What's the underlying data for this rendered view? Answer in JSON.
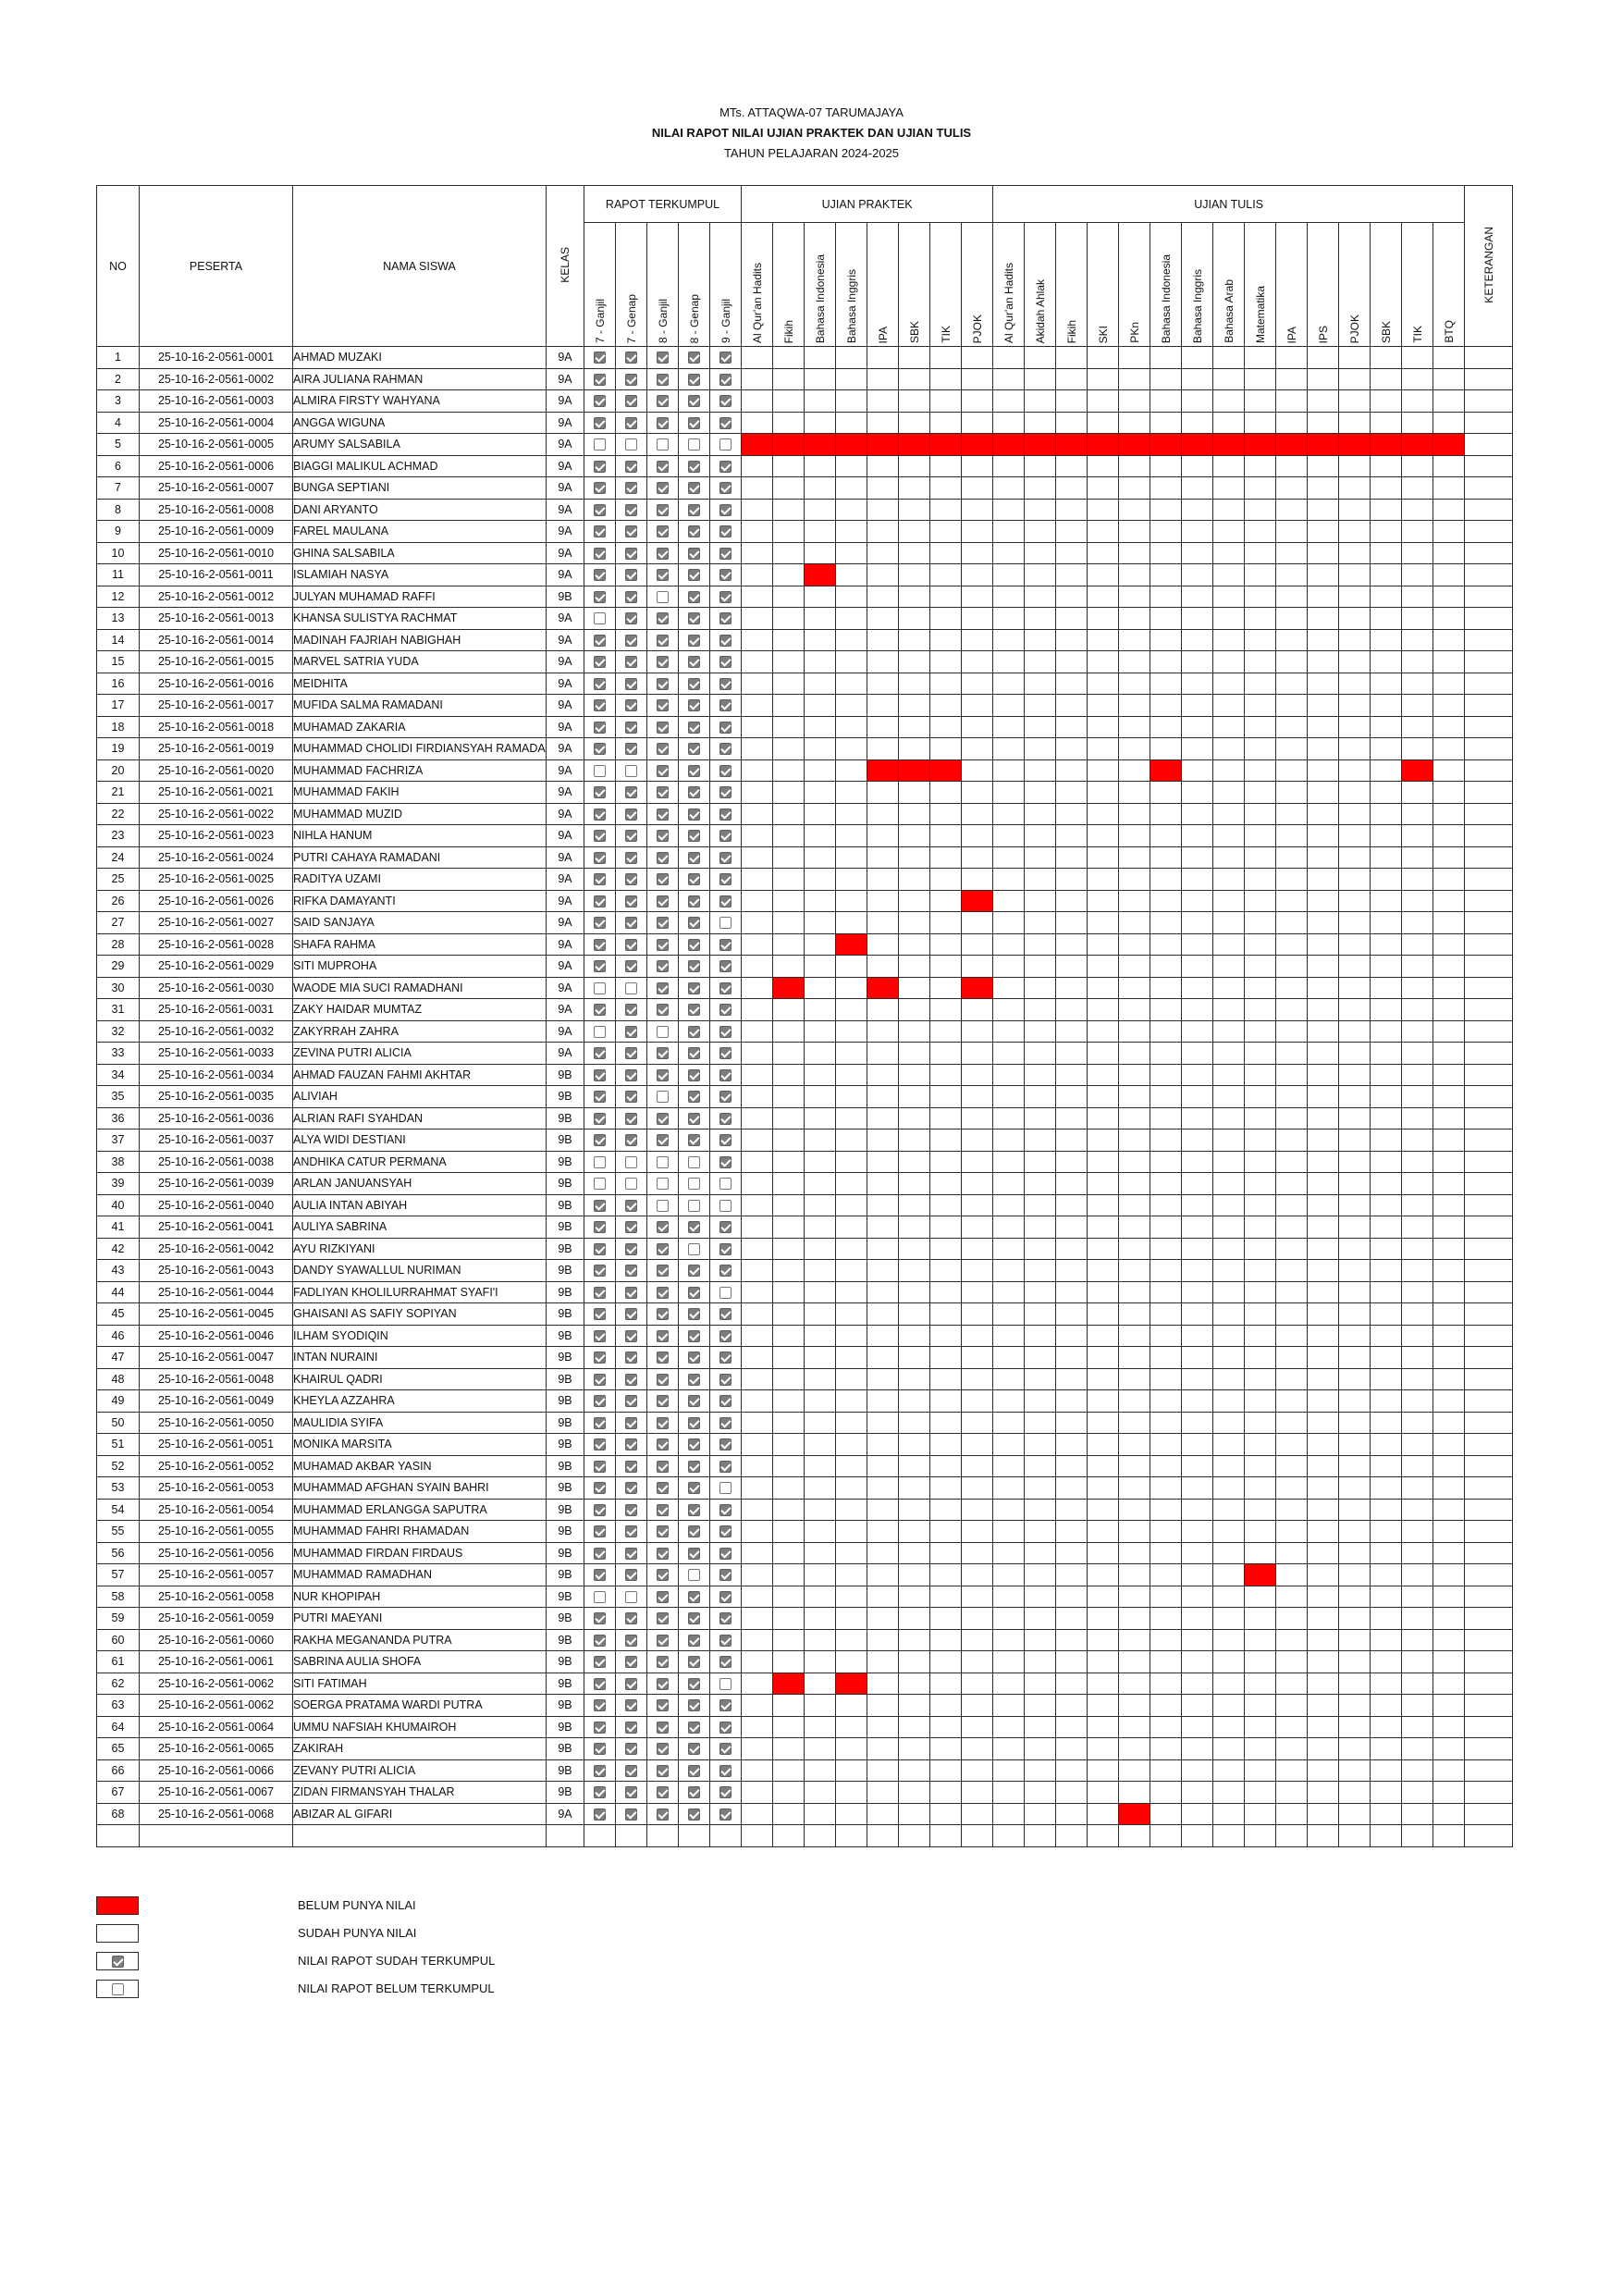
{
  "header": {
    "school": "MTs. ATTAQWA-07 TARUMAJAYA",
    "title": "NILAI RAPOT NILAI UJIAN PRAKTEK DAN UJIAN TULIS",
    "year": "TAHUN PELAJARAN 2024-2025"
  },
  "columns": {
    "no": "NO",
    "peserta": "PESERTA",
    "nama": "NAMA SISWA",
    "kelas": "KELAS",
    "keterangan": "KETERANGAN",
    "groups": {
      "rapot": "RAPOT TERKUMPUL",
      "praktek": "UJIAN PRAKTEK",
      "tulis": "UJIAN TULIS"
    },
    "rapot": [
      "7 - Ganjil",
      "7 - Genap",
      "8 - Ganjil",
      "8 - Genap",
      "9 - Ganjil"
    ],
    "praktek": [
      "Al Qur'an Hadits",
      "Fikih",
      "Bahasa Indonesia",
      "Bahasa Inggris",
      "IPA",
      "SBK",
      "TIK",
      "PJOK"
    ],
    "tulis": [
      "Al Qur'an Hadits",
      "Akidah Ahlak",
      "Fikih",
      "SKI",
      "PKn",
      "Bahasa Indonesia",
      "Bahasa Inggris",
      "Bahasa Arab",
      "Matematika",
      "IPA",
      "IPS",
      "PJOK",
      "SBK",
      "TIK",
      "BTQ"
    ]
  },
  "colors": {
    "missing": "#ff0000",
    "checked": "#7c7c7c"
  },
  "students": [
    {
      "no": "1",
      "id": "25-10-16-2-0561-0001",
      "name": "AHMAD MUZAKI",
      "kelas": "9A",
      "rapot": "11111",
      "red": []
    },
    {
      "no": "2",
      "id": "25-10-16-2-0561-0002",
      "name": "AIRA JULIANA RAHMAN",
      "kelas": "9A",
      "rapot": "11111",
      "red": []
    },
    {
      "no": "3",
      "id": "25-10-16-2-0561-0003",
      "name": "ALMIRA FIRSTY WAHYANA",
      "kelas": "9A",
      "rapot": "11111",
      "red": []
    },
    {
      "no": "4",
      "id": "25-10-16-2-0561-0004",
      "name": "ANGGA WIGUNA",
      "kelas": "9A",
      "rapot": "11111",
      "red": []
    },
    {
      "no": "5",
      "id": "25-10-16-2-0561-0005",
      "name": "ARUMY SALSABILA",
      "kelas": "9A",
      "rapot": "00000",
      "red": [
        0,
        1,
        2,
        3,
        4,
        5,
        6,
        7,
        8,
        9,
        10,
        11,
        12,
        13,
        14,
        15,
        16,
        17,
        18,
        19,
        20,
        21,
        22
      ]
    },
    {
      "no": "6",
      "id": "25-10-16-2-0561-0006",
      "name": "BIAGGI MALIKUL ACHMAD",
      "kelas": "9A",
      "rapot": "11111",
      "red": []
    },
    {
      "no": "7",
      "id": "25-10-16-2-0561-0007",
      "name": "BUNGA SEPTIANI",
      "kelas": "9A",
      "rapot": "11111",
      "red": []
    },
    {
      "no": "8",
      "id": "25-10-16-2-0561-0008",
      "name": "DANI ARYANTO",
      "kelas": "9A",
      "rapot": "11111",
      "red": []
    },
    {
      "no": "9",
      "id": "25-10-16-2-0561-0009",
      "name": "FAREL MAULANA",
      "kelas": "9A",
      "rapot": "11111",
      "red": []
    },
    {
      "no": "10",
      "id": "25-10-16-2-0561-0010",
      "name": "GHINA SALSABILA",
      "kelas": "9A",
      "rapot": "11111",
      "red": []
    },
    {
      "no": "11",
      "id": "25-10-16-2-0561-0011",
      "name": "ISLAMIAH NASYA",
      "kelas": "9A",
      "rapot": "11111",
      "red": [
        2
      ]
    },
    {
      "no": "12",
      "id": "25-10-16-2-0561-0012",
      "name": "JULYAN MUHAMAD RAFFI",
      "kelas": "9B",
      "rapot": "11011",
      "red": []
    },
    {
      "no": "13",
      "id": "25-10-16-2-0561-0013",
      "name": "KHANSA SULISTYA RACHMAT",
      "kelas": "9A",
      "rapot": "01111",
      "red": []
    },
    {
      "no": "14",
      "id": "25-10-16-2-0561-0014",
      "name": "MADINAH FAJRIAH NABIGHAH",
      "kelas": "9A",
      "rapot": "11111",
      "red": []
    },
    {
      "no": "15",
      "id": "25-10-16-2-0561-0015",
      "name": "MARVEL SATRIA YUDA",
      "kelas": "9A",
      "rapot": "11111",
      "red": []
    },
    {
      "no": "16",
      "id": "25-10-16-2-0561-0016",
      "name": "MEIDHITA",
      "kelas": "9A",
      "rapot": "11111",
      "red": []
    },
    {
      "no": "17",
      "id": "25-10-16-2-0561-0017",
      "name": "MUFIDA SALMA RAMADANI",
      "kelas": "9A",
      "rapot": "11111",
      "red": []
    },
    {
      "no": "18",
      "id": "25-10-16-2-0561-0018",
      "name": "MUHAMAD ZAKARIA",
      "kelas": "9A",
      "rapot": "11111",
      "red": []
    },
    {
      "no": "19",
      "id": "25-10-16-2-0561-0019",
      "name": "MUHAMMAD CHOLIDI FIRDIANSYAH RAMADAN",
      "kelas": "9A",
      "rapot": "11111",
      "red": []
    },
    {
      "no": "20",
      "id": "25-10-16-2-0561-0020",
      "name": "MUHAMMAD FACHRIZA",
      "kelas": "9A",
      "rapot": "00111",
      "red": [
        4,
        5,
        6,
        13,
        21
      ]
    },
    {
      "no": "21",
      "id": "25-10-16-2-0561-0021",
      "name": "MUHAMMAD FAKIH",
      "kelas": "9A",
      "rapot": "11111",
      "red": []
    },
    {
      "no": "22",
      "id": "25-10-16-2-0561-0022",
      "name": "MUHAMMAD MUZID",
      "kelas": "9A",
      "rapot": "11111",
      "red": []
    },
    {
      "no": "23",
      "id": "25-10-16-2-0561-0023",
      "name": "NIHLA HANUM",
      "kelas": "9A",
      "rapot": "11111",
      "red": []
    },
    {
      "no": "24",
      "id": "25-10-16-2-0561-0024",
      "name": "PUTRI CAHAYA RAMADANI",
      "kelas": "9A",
      "rapot": "11111",
      "red": []
    },
    {
      "no": "25",
      "id": "25-10-16-2-0561-0025",
      "name": "RADITYA UZAMI",
      "kelas": "9A",
      "rapot": "11111",
      "red": []
    },
    {
      "no": "26",
      "id": "25-10-16-2-0561-0026",
      "name": "RIFKA DAMAYANTI",
      "kelas": "9A",
      "rapot": "11111",
      "red": [
        7
      ]
    },
    {
      "no": "27",
      "id": "25-10-16-2-0561-0027",
      "name": "SAID SANJAYA",
      "kelas": "9A",
      "rapot": "11110",
      "red": []
    },
    {
      "no": "28",
      "id": "25-10-16-2-0561-0028",
      "name": "SHAFA RAHMA",
      "kelas": "9A",
      "rapot": "11111",
      "red": [
        3
      ]
    },
    {
      "no": "29",
      "id": "25-10-16-2-0561-0029",
      "name": "SITI MUPROHA",
      "kelas": "9A",
      "rapot": "11111",
      "red": []
    },
    {
      "no": "30",
      "id": "25-10-16-2-0561-0030",
      "name": "WAODE MIA SUCI RAMADHANI",
      "kelas": "9A",
      "rapot": "00111",
      "red": [
        1,
        4,
        7
      ]
    },
    {
      "no": "31",
      "id": "25-10-16-2-0561-0031",
      "name": "ZAKY HAIDAR MUMTAZ",
      "kelas": "9A",
      "rapot": "11111",
      "red": []
    },
    {
      "no": "32",
      "id": "25-10-16-2-0561-0032",
      "name": "ZAKYRRAH ZAHRA",
      "kelas": "9A",
      "rapot": "01011",
      "red": []
    },
    {
      "no": "33",
      "id": "25-10-16-2-0561-0033",
      "name": "ZEVINA PUTRI ALICIA",
      "kelas": "9A",
      "rapot": "11111",
      "red": []
    },
    {
      "no": "34",
      "id": "25-10-16-2-0561-0034",
      "name": "AHMAD FAUZAN FAHMI AKHTAR",
      "kelas": "9B",
      "rapot": "11111",
      "red": []
    },
    {
      "no": "35",
      "id": "25-10-16-2-0561-0035",
      "name": "ALIVIAH",
      "kelas": "9B",
      "rapot": "11011",
      "red": []
    },
    {
      "no": "36",
      "id": "25-10-16-2-0561-0036",
      "name": "ALRIAN RAFI SYAHDAN",
      "kelas": "9B",
      "rapot": "11111",
      "red": []
    },
    {
      "no": "37",
      "id": "25-10-16-2-0561-0037",
      "name": "ALYA WIDI DESTIANI",
      "kelas": "9B",
      "rapot": "11111",
      "red": []
    },
    {
      "no": "38",
      "id": "25-10-16-2-0561-0038",
      "name": "ANDHIKA CATUR PERMANA",
      "kelas": "9B",
      "rapot": "00001",
      "red": []
    },
    {
      "no": "39",
      "id": "25-10-16-2-0561-0039",
      "name": "ARLAN JANUANSYAH",
      "kelas": "9B",
      "rapot": "00000",
      "red": []
    },
    {
      "no": "40",
      "id": "25-10-16-2-0561-0040",
      "name": "AULIA INTAN ABIYAH",
      "kelas": "9B",
      "rapot": "11000",
      "red": []
    },
    {
      "no": "41",
      "id": "25-10-16-2-0561-0041",
      "name": "AULIYA SABRINA",
      "kelas": "9B",
      "rapot": "11111",
      "red": []
    },
    {
      "no": "42",
      "id": "25-10-16-2-0561-0042",
      "name": "AYU RIZKIYANI",
      "kelas": "9B",
      "rapot": "11101",
      "red": []
    },
    {
      "no": "43",
      "id": "25-10-16-2-0561-0043",
      "name": "DANDY SYAWALLUL NURIMAN",
      "kelas": "9B",
      "rapot": "11111",
      "red": []
    },
    {
      "no": "44",
      "id": "25-10-16-2-0561-0044",
      "name": "FADLIYAN KHOLILURRAHMAT SYAFI'I",
      "kelas": "9B",
      "rapot": "11110",
      "red": []
    },
    {
      "no": "45",
      "id": "25-10-16-2-0561-0045",
      "name": "GHAISANI AS SAFIY SOPIYAN",
      "kelas": "9B",
      "rapot": "11111",
      "red": []
    },
    {
      "no": "46",
      "id": "25-10-16-2-0561-0046",
      "name": "ILHAM SYODIQIN",
      "kelas": "9B",
      "rapot": "11111",
      "red": []
    },
    {
      "no": "47",
      "id": "25-10-16-2-0561-0047",
      "name": "INTAN NURAINI",
      "kelas": "9B",
      "rapot": "11111",
      "red": []
    },
    {
      "no": "48",
      "id": "25-10-16-2-0561-0048",
      "name": "KHAIRUL QADRI",
      "kelas": "9B",
      "rapot": "11111",
      "red": []
    },
    {
      "no": "49",
      "id": "25-10-16-2-0561-0049",
      "name": "KHEYLA AZZAHRA",
      "kelas": "9B",
      "rapot": "11111",
      "red": []
    },
    {
      "no": "50",
      "id": "25-10-16-2-0561-0050",
      "name": "MAULIDIA SYIFA",
      "kelas": "9B",
      "rapot": "11111",
      "red": []
    },
    {
      "no": "51",
      "id": "25-10-16-2-0561-0051",
      "name": "MONIKA MARSITA",
      "kelas": "9B",
      "rapot": "11111",
      "red": []
    },
    {
      "no": "52",
      "id": "25-10-16-2-0561-0052",
      "name": "MUHAMAD AKBAR YASIN",
      "kelas": "9B",
      "rapot": "11111",
      "red": []
    },
    {
      "no": "53",
      "id": "25-10-16-2-0561-0053",
      "name": "MUHAMMAD AFGHAN SYAIN BAHRI",
      "kelas": "9B",
      "rapot": "11110",
      "red": []
    },
    {
      "no": "54",
      "id": "25-10-16-2-0561-0054",
      "name": "MUHAMMAD ERLANGGA SAPUTRA",
      "kelas": "9B",
      "rapot": "11111",
      "red": []
    },
    {
      "no": "55",
      "id": "25-10-16-2-0561-0055",
      "name": "MUHAMMAD FAHRI RHAMADAN",
      "kelas": "9B",
      "rapot": "11111",
      "red": []
    },
    {
      "no": "56",
      "id": "25-10-16-2-0561-0056",
      "name": "MUHAMMAD FIRDAN FIRDAUS",
      "kelas": "9B",
      "rapot": "11111",
      "red": []
    },
    {
      "no": "57",
      "id": "25-10-16-2-0561-0057",
      "name": "MUHAMMAD RAMADHAN",
      "kelas": "9B",
      "rapot": "11101",
      "red": [
        16
      ]
    },
    {
      "no": "58",
      "id": "25-10-16-2-0561-0058",
      "name": "NUR KHOPIPAH",
      "kelas": "9B",
      "rapot": "00111",
      "red": []
    },
    {
      "no": "59",
      "id": "25-10-16-2-0561-0059",
      "name": "PUTRI MAEYANI",
      "kelas": "9B",
      "rapot": "11111",
      "red": []
    },
    {
      "no": "60",
      "id": "25-10-16-2-0561-0060",
      "name": "RAKHA MEGANANDA PUTRA",
      "kelas": "9B",
      "rapot": "11111",
      "red": []
    },
    {
      "no": "61",
      "id": "25-10-16-2-0561-0061",
      "name": "SABRINA AULIA SHOFA",
      "kelas": "9B",
      "rapot": "11111",
      "red": []
    },
    {
      "no": "62",
      "id": "25-10-16-2-0561-0062",
      "name": "SITI FATIMAH",
      "kelas": "9B",
      "rapot": "11110",
      "red": [
        1,
        3
      ]
    },
    {
      "no": "63",
      "id": "25-10-16-2-0561-0062",
      "name": "SOERGA PRATAMA WARDI PUTRA",
      "kelas": "9B",
      "rapot": "11111",
      "red": []
    },
    {
      "no": "64",
      "id": "25-10-16-2-0561-0064",
      "name": "UMMU NAFSIAH KHUMAIROH",
      "kelas": "9B",
      "rapot": "11111",
      "red": []
    },
    {
      "no": "65",
      "id": "25-10-16-2-0561-0065",
      "name": "ZAKIRAH",
      "kelas": "9B",
      "rapot": "11111",
      "red": []
    },
    {
      "no": "66",
      "id": "25-10-16-2-0561-0066",
      "name": "ZEVANY PUTRI ALICIA",
      "kelas": "9B",
      "rapot": "11111",
      "red": []
    },
    {
      "no": "67",
      "id": "25-10-16-2-0561-0067",
      "name": "ZIDAN FIRMANSYAH THALAR",
      "kelas": "9B",
      "rapot": "11111",
      "red": []
    },
    {
      "no": "68",
      "id": "25-10-16-2-0561-0068",
      "name": "ABIZAR AL GIFARI",
      "kelas": "9A",
      "rapot": "11111",
      "red": [
        12
      ]
    }
  ],
  "legend": [
    {
      "swatch": "red",
      "label": "BELUM PUNYA NILAI"
    },
    {
      "swatch": "white",
      "label": "SUDAH PUNYA NILAI"
    },
    {
      "swatch": "checked",
      "label": "NILAI RAPOT SUDAH TERKUMPUL"
    },
    {
      "swatch": "unchecked",
      "label": "NILAI RAPOT BELUM TERKUMPUL"
    }
  ]
}
